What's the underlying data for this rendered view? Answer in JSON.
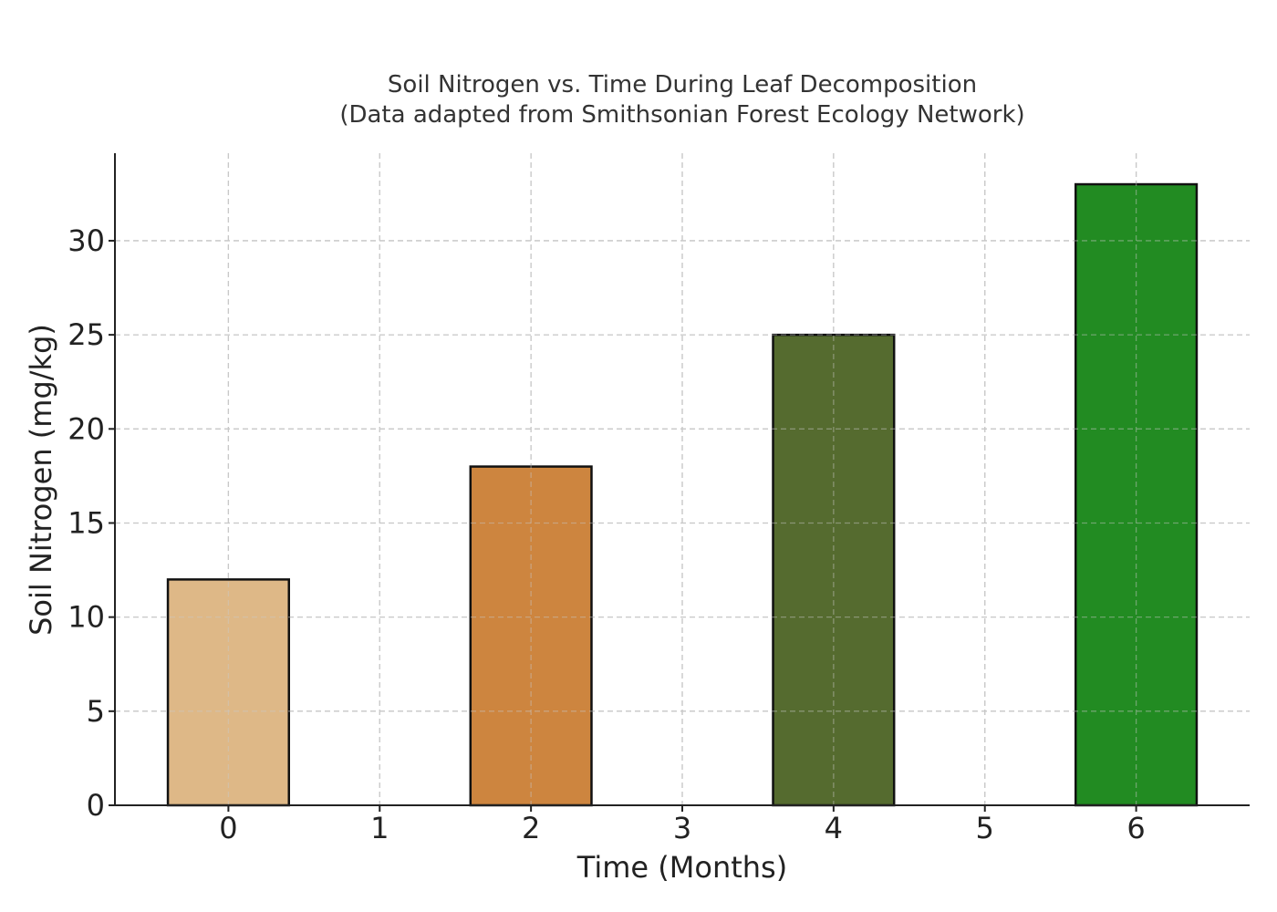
{
  "chart_data": {
    "type": "bar",
    "title": "Soil Nitrogen vs. Time During Leaf Decomposition",
    "subtitle": "(Data adapted from Smithsonian Forest Ecology Network)",
    "xlabel": "Time (Months)",
    "ylabel": "Soil Nitrogen (mg/kg)",
    "x": [
      0,
      2,
      4,
      6
    ],
    "values": [
      12,
      18,
      25,
      33
    ],
    "colors": [
      "#deb887",
      "#cd853f",
      "#556b2f",
      "#228b22"
    ],
    "xticks": [
      "0",
      "1",
      "2",
      "3",
      "4",
      "5",
      "6"
    ],
    "yticks": [
      "0",
      "5",
      "10",
      "15",
      "20",
      "25",
      "30"
    ],
    "xlim": [
      -0.75,
      6.75
    ],
    "ylim": [
      0,
      34.65
    ],
    "grid": true
  }
}
